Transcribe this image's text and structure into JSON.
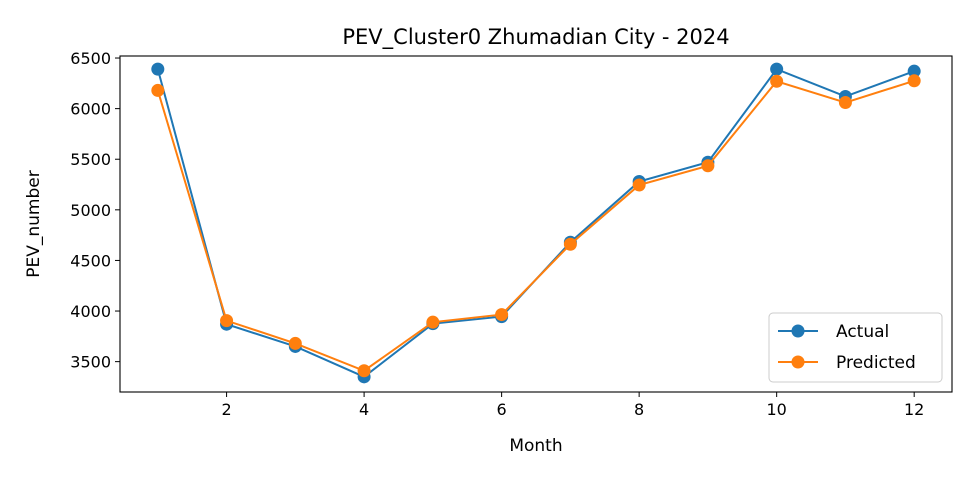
{
  "chart_data": {
    "type": "line",
    "title": "PEV_Cluster0 Zhumadian City - 2024",
    "xlabel": "Month",
    "ylabel": "PEV_number",
    "xlim": [
      0.45,
      12.55
    ],
    "ylim": [
      3200,
      6520
    ],
    "xticks": [
      2,
      4,
      6,
      8,
      10,
      12
    ],
    "yticks": [
      3500,
      4000,
      4500,
      5000,
      5500,
      6000,
      6500
    ],
    "grid": false,
    "legend_position": "lower-right",
    "x": [
      1,
      2,
      3,
      4,
      5,
      6,
      7,
      8,
      9,
      10,
      11,
      12
    ],
    "series": [
      {
        "name": "Actual",
        "color": "#1f77b4",
        "values": [
          6390,
          3870,
          3650,
          3350,
          3875,
          3945,
          4680,
          5280,
          5470,
          6390,
          6120,
          6370
        ]
      },
      {
        "name": "Predicted",
        "color": "#ff7f0e",
        "values": [
          6180,
          3905,
          3680,
          3410,
          3890,
          3965,
          4660,
          5245,
          5435,
          6270,
          6060,
          6275
        ]
      }
    ]
  }
}
